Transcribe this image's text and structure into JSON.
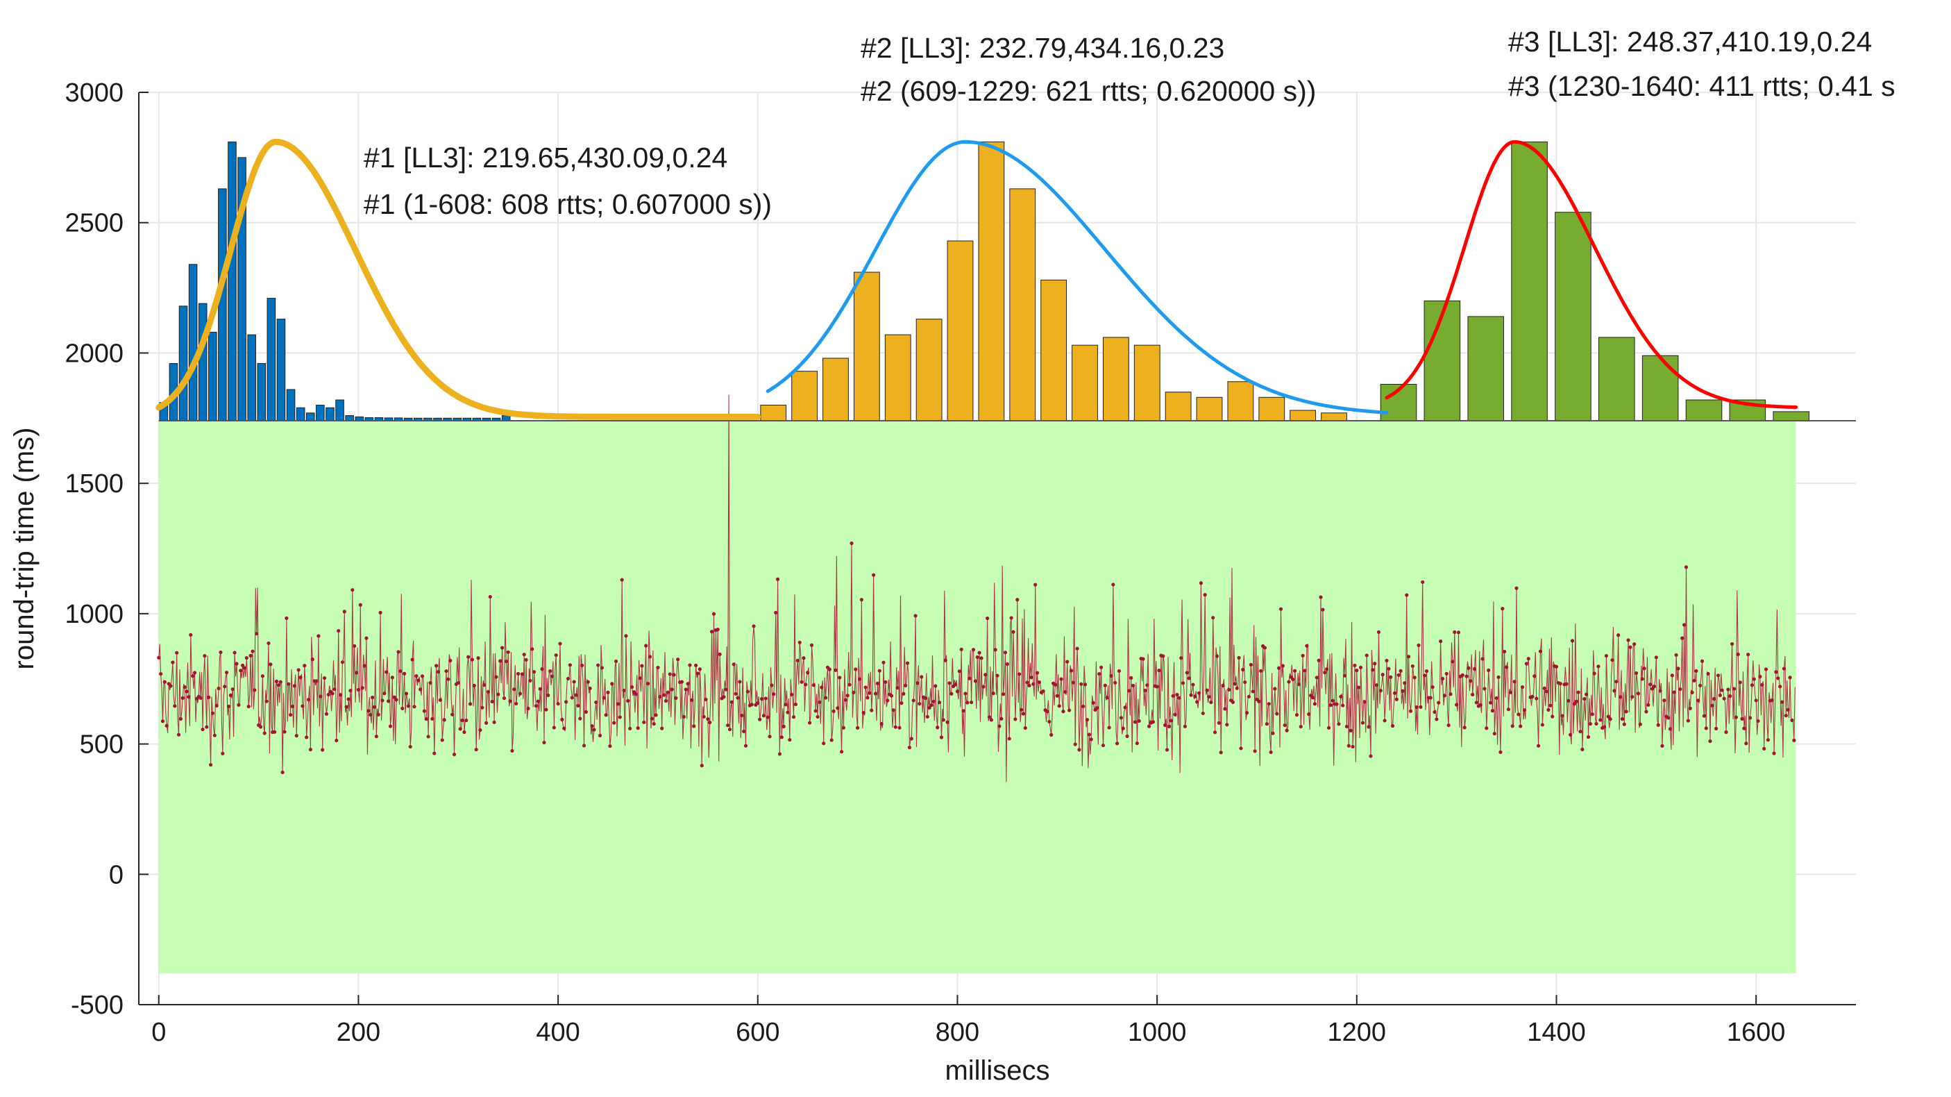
{
  "chart_data": {
    "type": "line",
    "title": "",
    "xlabel": "millisecs",
    "ylabel": "round-trip time (ms)",
    "xlim": [
      -20,
      1700
    ],
    "ylim": [
      -500,
      3000
    ],
    "xticks": [
      0,
      200,
      400,
      600,
      800,
      1000,
      1200,
      1400,
      1600
    ],
    "yticks": [
      -500,
      0,
      500,
      1000,
      1500,
      2000,
      2500,
      3000
    ],
    "xtick_labels": [
      "0",
      "200",
      "400",
      "600",
      "800",
      "1000",
      "1200",
      "1400",
      "1600"
    ],
    "ytick_labels": [
      "-500",
      "0",
      "500",
      "1000",
      "1500",
      "2000",
      "2500",
      "3000"
    ],
    "grid": true,
    "background_region": {
      "x": [
        0,
        1640
      ],
      "y": [
        -380,
        1740
      ],
      "color": "#c6ffb4"
    },
    "rtt_series": {
      "name": "round-trip time samples",
      "color": "#a2142f",
      "n_points": 1640,
      "typical_range_ms": [
        330,
        1270
      ],
      "median_ms": 690,
      "spike": {
        "x": 571,
        "y": 1840
      }
    },
    "histograms": [
      {
        "name": "#1",
        "color": "#0072bd",
        "x_start": 0,
        "bin_width": 9.8,
        "values": [
          1810,
          1960,
          2180,
          2340,
          2190,
          2080,
          2630,
          2810,
          2750,
          2070,
          1960,
          2210,
          2130,
          1860,
          1790,
          1770,
          1800,
          1790,
          1820,
          1760,
          1755,
          1752,
          1752,
          1751,
          1751,
          1750,
          1750,
          1750,
          1750,
          1750,
          1750,
          1750,
          1750,
          1750,
          1750,
          1760
        ]
      },
      {
        "name": "#2",
        "color": "#edb120",
        "x_start": 600,
        "bin_width": 31.2,
        "values": [
          1800,
          1930,
          1980,
          2310,
          2070,
          2130,
          2430,
          2810,
          2630,
          2280,
          2030,
          2060,
          2030,
          1850,
          1830,
          1890,
          1830,
          1780,
          1770
        ]
      },
      {
        "name": "#3",
        "color": "#77ac30",
        "x_start": 1220,
        "bin_width": 43.7,
        "values": [
          1880,
          2200,
          2140,
          2810,
          2540,
          2060,
          1990,
          1820,
          1820,
          1775
        ]
      }
    ],
    "fits": [
      {
        "name": "#1 [LL3]",
        "color": "#edb120",
        "x_range": [
          0,
          600
        ],
        "peak_x": 117,
        "peak_y": 2810,
        "base": 1755,
        "width_left": 45,
        "width_right": 80
      },
      {
        "name": "#2 [LL3]",
        "color": "#1e9bf0",
        "x_range": [
          610,
          1230
        ],
        "peak_x": 808,
        "peak_y": 2810,
        "base": 1760,
        "width_left": 90,
        "width_right": 140
      },
      {
        "name": "#3 [LL3]",
        "color": "#ff0000",
        "x_range": [
          1230,
          1640
        ],
        "peak_x": 1358,
        "peak_y": 2810,
        "base": 1790,
        "width_left": 50,
        "width_right": 80
      }
    ],
    "annotations": [
      {
        "segment": 1,
        "line1": "#1 [LL3]: 219.65,430.09,0.24",
        "line2": "#1 (1-608: 608 rtts; 0.607000 s))"
      },
      {
        "segment": 2,
        "line1": "#2 [LL3]: 232.79,434.16,0.23",
        "line2": "#2 (609-1229: 621 rtts; 0.620000 s))"
      },
      {
        "segment": 3,
        "line1": "#3 [LL3]: 248.37,410.19,0.24",
        "line2": "#3 (1230-1640: 411 rtts; 0.41 s"
      }
    ]
  }
}
